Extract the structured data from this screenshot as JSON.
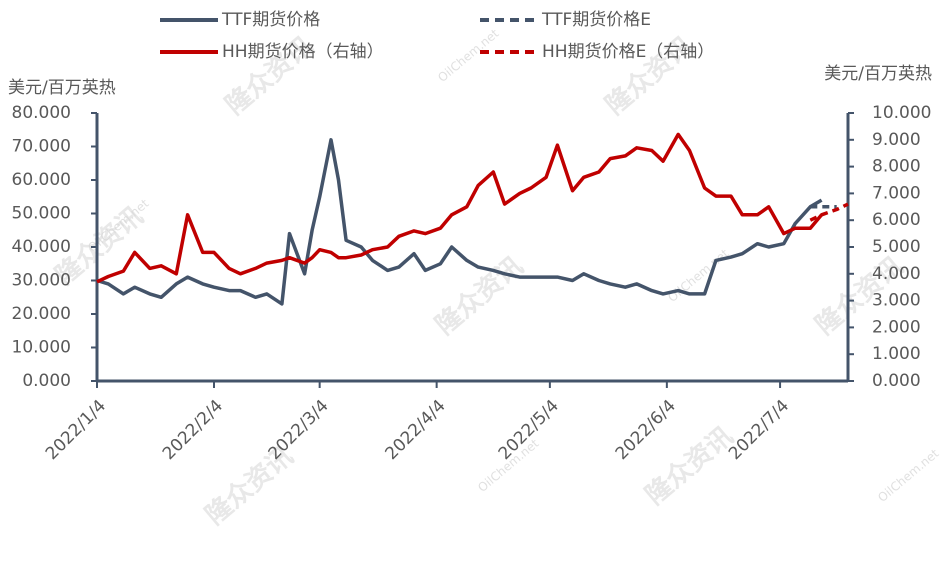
{
  "chart_data": {
    "type": "line",
    "y_label": "美元/百万英热",
    "y2_label": "美元/百万英热",
    "watermark": [
      "隆众资讯",
      "OilChem.net"
    ],
    "x": [
      "2022/1/4",
      "2022/1/7",
      "2022/1/11",
      "2022/1/14",
      "2022/1/18",
      "2022/1/21",
      "2022/1/25",
      "2022/1/28",
      "2022/2/1",
      "2022/2/4",
      "2022/2/8",
      "2022/2/11",
      "2022/2/15",
      "2022/2/18",
      "2022/2/22",
      "2022/2/24",
      "2022/2/28",
      "2022/3/2",
      "2022/3/4",
      "2022/3/7",
      "2022/3/9",
      "2022/3/11",
      "2022/3/15",
      "2022/3/18",
      "2022/3/22",
      "2022/3/25",
      "2022/3/29",
      "2022/4/1",
      "2022/4/5",
      "2022/4/8",
      "2022/4/12",
      "2022/4/15",
      "2022/4/19",
      "2022/4/22",
      "2022/4/26",
      "2022/4/29",
      "2022/5/3",
      "2022/5/6",
      "2022/5/10",
      "2022/5/13",
      "2022/5/17",
      "2022/5/20",
      "2022/5/24",
      "2022/5/27",
      "2022/5/31",
      "2022/6/3",
      "2022/6/7",
      "2022/6/10",
      "2022/6/14",
      "2022/6/17",
      "2022/6/21",
      "2022/6/24",
      "2022/6/28",
      "2022/7/1",
      "2022/7/5",
      "2022/7/8",
      "2022/7/12",
      "2022/7/15",
      "2022/7/19",
      "2022/7/22"
    ],
    "xlim": [
      "2022/1/4",
      "2022/7/22"
    ],
    "xticks": [
      "2022/1/4",
      "2022/2/4",
      "2022/3/4",
      "2022/4/4",
      "2022/5/4",
      "2022/6/4",
      "2022/7/4"
    ],
    "ylim": [
      0,
      80
    ],
    "yticks": [
      {
        "value": 0,
        "label": "0.000"
      },
      {
        "value": 10,
        "label": "10.000"
      },
      {
        "value": 20,
        "label": "20.000"
      },
      {
        "value": 30,
        "label": "30.000"
      },
      {
        "value": 40,
        "label": "40.000"
      },
      {
        "value": 50,
        "label": "50.000"
      },
      {
        "value": 60,
        "label": "60.000"
      },
      {
        "value": 70,
        "label": "70.000"
      },
      {
        "value": 80,
        "label": "80.000"
      }
    ],
    "y2lim": [
      0,
      10
    ],
    "y2ticks": [
      {
        "value": 0,
        "label": "0.000"
      },
      {
        "value": 1,
        "label": "1.000"
      },
      {
        "value": 2,
        "label": "2.000"
      },
      {
        "value": 3,
        "label": "3.000"
      },
      {
        "value": 4,
        "label": "4.000"
      },
      {
        "value": 5,
        "label": "5.000"
      },
      {
        "value": 6,
        "label": "6.000"
      },
      {
        "value": 7,
        "label": "7.000"
      },
      {
        "value": 8,
        "label": "8.000"
      },
      {
        "value": 9,
        "label": "9.000"
      },
      {
        "value": 10,
        "label": "10.000"
      }
    ],
    "series": [
      {
        "name": "TTF期货价格",
        "color": "#44546a",
        "dash": false,
        "axis": "y",
        "values": [
          30,
          29,
          26,
          28,
          26,
          25,
          29,
          31,
          29,
          28,
          27,
          27,
          25,
          26,
          23,
          44,
          32,
          45,
          55,
          72,
          60,
          42,
          40,
          36,
          33,
          34,
          38,
          33,
          35,
          40,
          36,
          34,
          33,
          32,
          31,
          31,
          31,
          31,
          30,
          32,
          30,
          29,
          28,
          29,
          27,
          26,
          27,
          26,
          26,
          36,
          37,
          38,
          41,
          40,
          41,
          47,
          52,
          54,
          null,
          null
        ]
      },
      {
        "name": "TTF期货价格E",
        "color": "#44546a",
        "dash": true,
        "axis": "y",
        "values": [
          null,
          null,
          null,
          null,
          null,
          null,
          null,
          null,
          null,
          null,
          null,
          null,
          null,
          null,
          null,
          null,
          null,
          null,
          null,
          null,
          null,
          null,
          null,
          null,
          null,
          null,
          null,
          null,
          null,
          null,
          null,
          null,
          null,
          null,
          null,
          null,
          null,
          null,
          null,
          null,
          null,
          null,
          null,
          null,
          null,
          null,
          null,
          null,
          null,
          null,
          null,
          null,
          null,
          null,
          null,
          null,
          52,
          52,
          52,
          null
        ]
      },
      {
        "name": "HH期货价格（右轴）",
        "color": "#c00000",
        "dash": false,
        "axis": "y2",
        "values": [
          3.7,
          3.9,
          4.1,
          4.8,
          4.2,
          4.3,
          4.0,
          6.2,
          4.8,
          4.8,
          4.2,
          4.0,
          4.2,
          4.4,
          4.5,
          4.6,
          4.4,
          4.6,
          4.9,
          4.8,
          4.6,
          4.6,
          4.7,
          4.9,
          5.0,
          5.4,
          5.6,
          5.5,
          5.7,
          6.2,
          6.5,
          7.3,
          7.8,
          6.6,
          7.0,
          7.2,
          7.6,
          8.8,
          7.1,
          7.6,
          7.8,
          8.3,
          8.4,
          8.7,
          8.6,
          8.2,
          9.2,
          8.6,
          7.2,
          6.9,
          6.9,
          6.2,
          6.2,
          6.5,
          5.5,
          5.7,
          5.7,
          6.2,
          null,
          null
        ]
      },
      {
        "name": "HH期货价格E（右轴）",
        "color": "#c00000",
        "dash": true,
        "axis": "y2",
        "values": [
          null,
          null,
          null,
          null,
          null,
          null,
          null,
          null,
          null,
          null,
          null,
          null,
          null,
          null,
          null,
          null,
          null,
          null,
          null,
          null,
          null,
          null,
          null,
          null,
          null,
          null,
          null,
          null,
          null,
          null,
          null,
          null,
          null,
          null,
          null,
          null,
          null,
          null,
          null,
          null,
          null,
          null,
          null,
          null,
          null,
          null,
          null,
          null,
          null,
          null,
          null,
          null,
          null,
          null,
          null,
          null,
          6.0,
          6.2,
          6.4,
          6.6
        ]
      }
    ]
  }
}
